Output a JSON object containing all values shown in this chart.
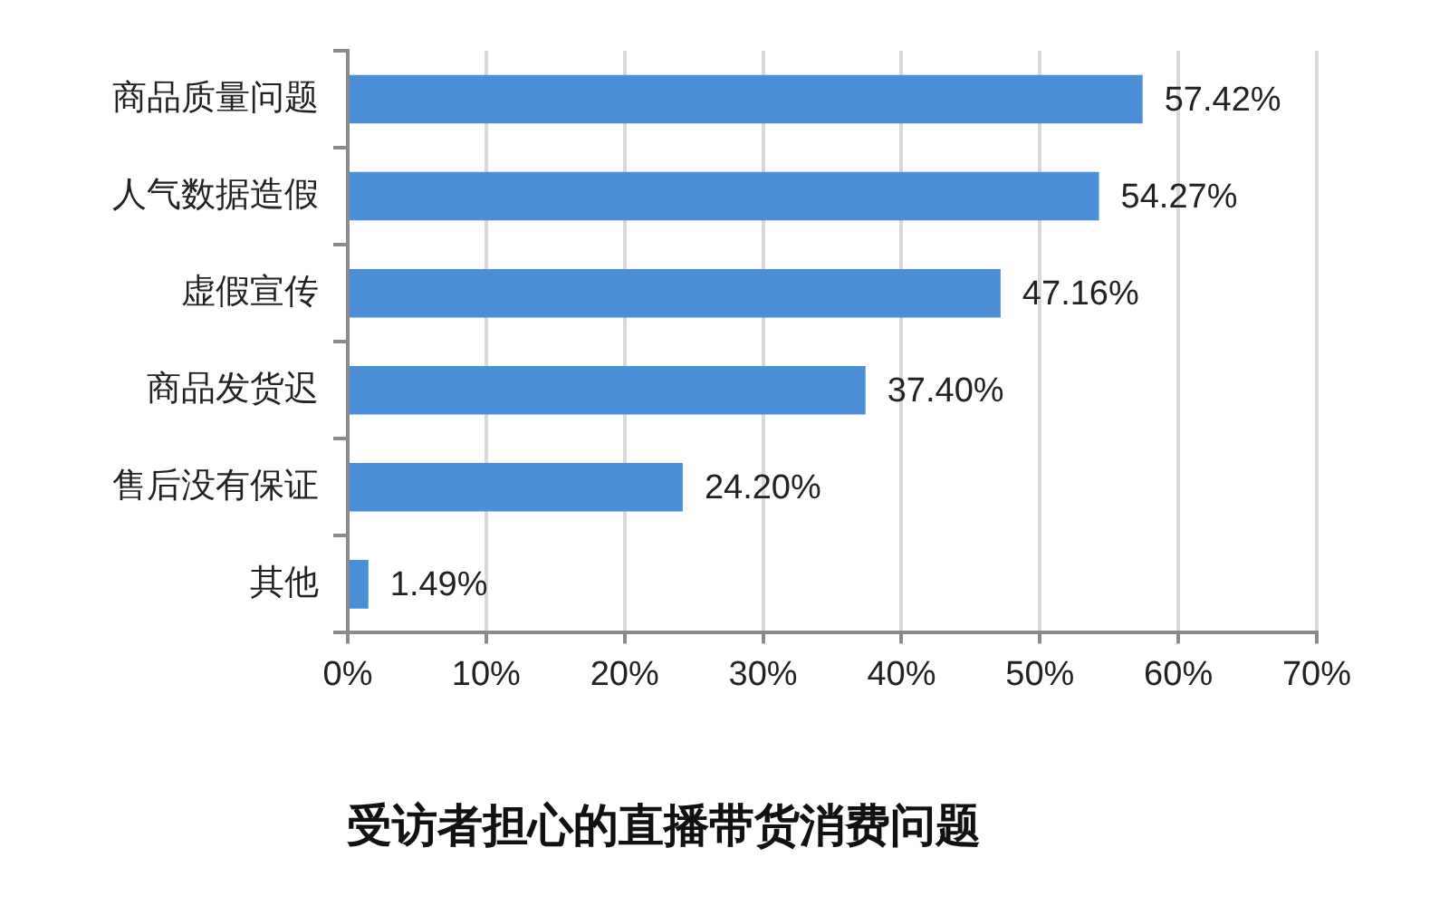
{
  "chart_data": {
    "type": "bar",
    "orientation": "horizontal",
    "title": "受访者担心的直播带货消费问题",
    "categories": [
      "商品质量问题",
      "人气数据造假",
      "虚假宣传",
      "商品发货迟",
      "售后没有保证",
      "其他"
    ],
    "values": [
      57.42,
      54.27,
      47.16,
      37.4,
      24.2,
      1.49
    ],
    "value_labels": [
      "57.42%",
      "54.27%",
      "47.16%",
      "37.40%",
      "24.20%",
      "1.49%"
    ],
    "color": "#4a8fd8",
    "xlim": [
      0,
      70
    ],
    "xticks": [
      {
        "value": 0,
        "label": "0%"
      },
      {
        "value": 10,
        "label": "10%"
      },
      {
        "value": 20,
        "label": "20%"
      },
      {
        "value": 30,
        "label": "30%"
      },
      {
        "value": 40,
        "label": "40%"
      },
      {
        "value": 50,
        "label": "50%"
      },
      {
        "value": 60,
        "label": "60%"
      },
      {
        "value": 70,
        "label": "70%"
      }
    ],
    "grid": "x"
  }
}
